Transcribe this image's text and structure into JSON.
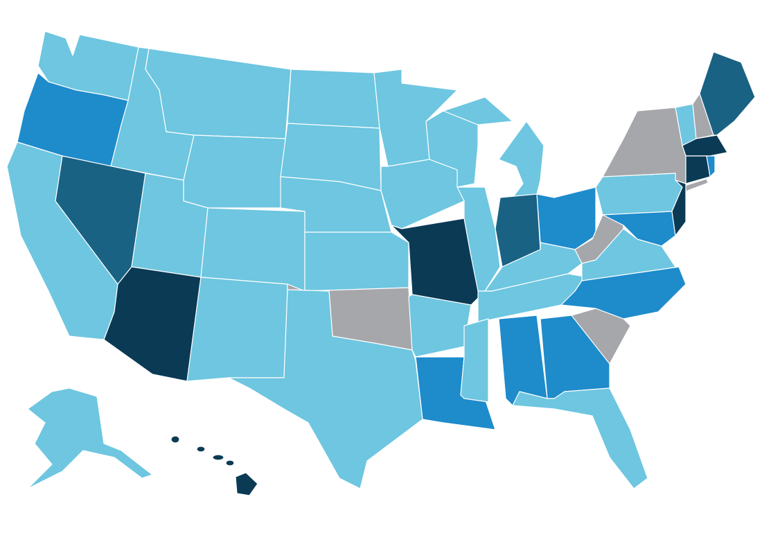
{
  "palette": [
    "#6ec6e0",
    "#1e8bcb",
    "#1a6283",
    "#0b3a55",
    "#a6a7aa"
  ]
}
